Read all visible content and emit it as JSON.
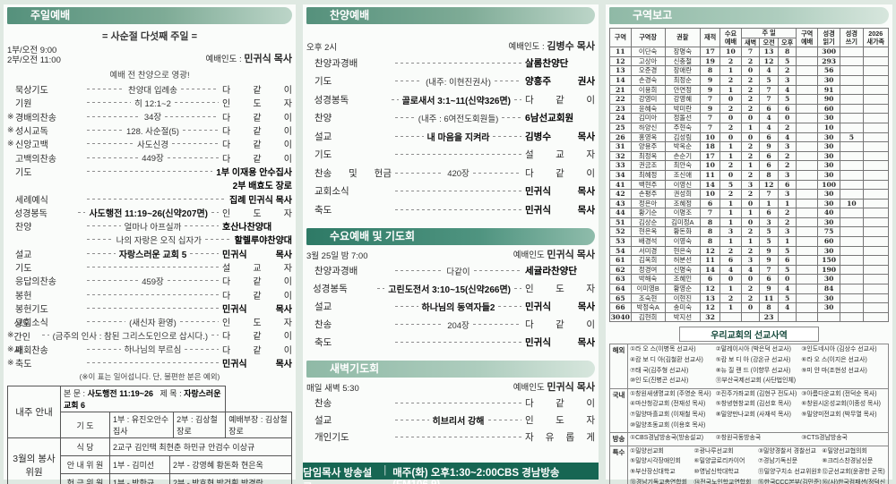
{
  "colors": {
    "banner_green": "#55917c",
    "banner_dark": "#2e7a66",
    "banner_light": "#8fb9a6",
    "bar_bg": "#176653",
    "page_bg": "#dfe9e2"
  },
  "sunday": {
    "title": "주일예배",
    "subtitle": "= 사순절 다섯째 주일 =",
    "time1": "1부/오전 9:00",
    "time2": "2부/오전 11:00",
    "leader_label": "예배인도 :",
    "leader": "민귀식 목사",
    "pre_note": "예배 전 찬양으로 영광!",
    "rows": [
      {
        "l": "묵상기도",
        "c": "찬양대 입례송",
        "r": "다 같 이"
      },
      {
        "l": "기원",
        "c": "히 12:1~2",
        "r": "인 도 자"
      },
      {
        "pre": "※",
        "l": "경배의찬송",
        "c": "34장",
        "r": "다 같 이"
      },
      {
        "pre": "※",
        "l": "성시교독",
        "c": "128. 사순절(5)",
        "r": "다 같 이"
      },
      {
        "pre": "※",
        "l": "신앙고백",
        "c": "사도신경",
        "r": "다 같 이"
      },
      {
        "l": "고백의찬송",
        "c": "449장",
        "r": "다 같 이"
      },
      {
        "l": "기도",
        "r": "1부 이재용 안수집사",
        "rb": true
      },
      {
        "cont": true,
        "r": "2부 배효도 장로",
        "rb": true
      },
      {
        "l": "세례예식",
        "r": "집례 민귀식 목사",
        "rb": true
      },
      {
        "l": "성경봉독",
        "c": "사도행전 11:19~26(신약207면)",
        "cb": true,
        "r": "인 도 자"
      },
      {
        "l": "찬양",
        "c": "얼마나 아프실까",
        "r": "호산나찬양대",
        "rb": true
      },
      {
        "l": "",
        "c": "나의 자랑은 오직 십자가",
        "r": "할렐루야찬양대",
        "rb": true
      },
      {
        "l": "설교",
        "c": "자랑스러운 교회 5",
        "cb": true,
        "r": "민귀식 목사",
        "rb": true
      },
      {
        "l": "기도",
        "r": "설 교 자"
      },
      {
        "l": "응답의찬송",
        "c": "459장",
        "r": "다 같 이"
      },
      {
        "l": "봉헌",
        "r": "다 같 이"
      },
      {
        "l": "봉헌기도",
        "r": "민귀식 목사",
        "rb": true
      },
      {
        "l": "교회소식",
        "c": "(새신자 환영)",
        "r": "인 도 자"
      },
      {
        "pre": "※",
        "l": "성도간인사",
        "c": "(금주의 인사 : 참된 그리스도인으로 삽시다.)",
        "r": "다 같 이"
      },
      {
        "pre": "※",
        "l": "폐회찬송",
        "c": "하나님의 부르심",
        "r": "다 같 이"
      },
      {
        "pre": "※",
        "l": "축도",
        "r": "민귀식 목사",
        "rb": true
      }
    ],
    "footnote": "(※이 표는 일어섭니다. 단, 불편한 분은 예외)"
  },
  "next_week": {
    "head": "내주 안내",
    "scripture_label": "본 문 :",
    "scripture": "사도행전 11:19~26",
    "title_label": "제 목 :",
    "title": "자랑스러운 교회 6",
    "prayer_label": "기 도",
    "prayer_1": "1부 : 유진오안수집사",
    "prayer_2": "2부 : 김상철장로",
    "prayer_3": "예배부장 : 김상철장로"
  },
  "march_volunteers": {
    "head": "3월의 봉사위원",
    "rows": [
      {
        "label": "식 당",
        "cells": [
          "2교구 김인택 최현춘 하민규 안검수 이상규"
        ]
      },
      {
        "label": "안 내 위 원",
        "cells": [
          "1부 - 김미선",
          "2부 - 강영혜 황돈화 현은옥"
        ]
      },
      {
        "label": "헌 금 위 원",
        "cells": [
          "1부 - 박한규",
          "2부 - 박호현 박건휘 박경란"
        ]
      }
    ]
  },
  "praise": {
    "title": "찬양예배",
    "time": "오후 2시",
    "leader_label": "예배인도 :",
    "leader": "김병수 목사",
    "rows": [
      {
        "l": "찬양과경배",
        "r": "살롬찬양단",
        "rb": true
      },
      {
        "l": "기도",
        "c": "(내주: 이현진권사)",
        "r": "양흥주 권사",
        "rb": true
      },
      {
        "l": "성경봉독",
        "c": "골로새서 3:1~11(신약326면)",
        "cb": true,
        "r": "다 같 이"
      },
      {
        "l": "찬양",
        "c": "(내주 : 6여전도회원들)",
        "r": "6남선교회원",
        "rb": true
      },
      {
        "l": "설교",
        "c": "내 마음을 지켜라",
        "cb": true,
        "r": "김병수 목사",
        "rb": true
      },
      {
        "l": "기도",
        "r": "설 교 자"
      },
      {
        "l": "찬송 및 헌금",
        "c": "420장",
        "r": "다 같 이"
      },
      {
        "l": "교회소식",
        "r": "민귀식 목사",
        "rb": true
      },
      {
        "l": "축도",
        "r": "민귀식 목사",
        "rb": true
      }
    ]
  },
  "wednesday": {
    "title": "수요예배 및 기도회",
    "time": "3월 25일 밤 7:00",
    "leader_label": "예배인도",
    "leader": "민귀식 목사",
    "rows": [
      {
        "l": "찬양과경배",
        "c": "다같이",
        "r": "세귤라찬양단",
        "rb": true
      },
      {
        "l": "성경봉독",
        "c": "고린도전서 3:10~15(신약266면)",
        "cb": true,
        "r": "인 도 자"
      },
      {
        "l": "설교",
        "c": "하나님의 동역자들2",
        "cb": true,
        "r": "민귀식 목사",
        "rb": true
      },
      {
        "l": "찬송",
        "c": "204장",
        "r": "다 같 이"
      },
      {
        "l": "축도",
        "r": "민귀식 목사",
        "rb": true
      }
    ]
  },
  "dawn": {
    "title": "새벽기도회",
    "time": "매일 새벽 5:30",
    "leader_label": "예배인도",
    "leader": "민귀식 목사",
    "rows": [
      {
        "l": "찬송",
        "r": "다 같 이"
      },
      {
        "l": "설교",
        "c": "히브리서 강해",
        "cb": true,
        "r": "인 도 자"
      },
      {
        "l": "개인기도",
        "r": "자 유 롭 게"
      }
    ]
  },
  "broadcast_bar": {
    "label": "담임목사 방송설교",
    "sep": "|",
    "text": "매주(화) 오후1:30~2:00CBS 경남방송 (FM106.9)"
  },
  "district": {
    "title": "구역보고",
    "headers": {
      "col_district": "구역",
      "col_leader": "구역장",
      "col_kwonchal": "권찰",
      "col_enrolled": "재적",
      "col_wed": "수요\n예배",
      "group_sunday": "주 일",
      "sub": [
        "새벽",
        "오전",
        "오후"
      ],
      "col_cell": "구역\n예배",
      "col_read": "성경\n읽기",
      "col_write": "성경\n쓰기",
      "col_new": "2026\n새가족"
    },
    "rows": [
      [
        "11",
        "이단숙",
        "장명숙",
        "17",
        "10",
        "7",
        "13",
        "8",
        "",
        "300",
        "",
        ""
      ],
      [
        "12",
        "고상아",
        "신충철",
        "19",
        "2",
        "2",
        "12",
        "5",
        "",
        "293",
        "",
        ""
      ],
      [
        "13",
        "오준경",
        "장애란",
        "8",
        "1",
        "0",
        "4",
        "2",
        "",
        "56",
        "",
        ""
      ],
      [
        "14",
        "손경숙",
        "최정순",
        "9",
        "2",
        "2",
        "5",
        "3",
        "",
        "30",
        "",
        ""
      ],
      [
        "21",
        "이용희",
        "안연정",
        "9",
        "1",
        "2",
        "7",
        "4",
        "",
        "91",
        "",
        ""
      ],
      [
        "22",
        "강영미",
        "강영혜",
        "7",
        "0",
        "2",
        "7",
        "5",
        "",
        "90",
        "",
        ""
      ],
      [
        "23",
        "윤혜숙",
        "박미란",
        "9",
        "2",
        "2",
        "6",
        "6",
        "",
        "60",
        "",
        ""
      ],
      [
        "24",
        "김미아",
        "정돌선",
        "7",
        "0",
        "0",
        "4",
        "0",
        "",
        "30",
        "",
        ""
      ],
      [
        "25",
        "하양신",
        "주현숙",
        "7",
        "2",
        "1",
        "4",
        "2",
        "",
        "10",
        "",
        ""
      ],
      [
        "26",
        "홍영옥",
        "김성림",
        "10",
        "0",
        "0",
        "6",
        "4",
        "",
        "30",
        "5",
        ""
      ],
      [
        "31",
        "양용주",
        "박옥순",
        "18",
        "1",
        "2",
        "9",
        "3",
        "",
        "30",
        "",
        ""
      ],
      [
        "32",
        "최정옥",
        "손순기",
        "17",
        "1",
        "2",
        "6",
        "2",
        "",
        "30",
        "",
        ""
      ],
      [
        "33",
        "권금조",
        "최안숙",
        "10",
        "2",
        "1",
        "6",
        "2",
        "",
        "30",
        "",
        ""
      ],
      [
        "34",
        "최혜정",
        "조신애",
        "11",
        "0",
        "2",
        "8",
        "3",
        "",
        "30",
        "",
        ""
      ],
      [
        "41",
        "백현주",
        "이영신",
        "14",
        "5",
        "3",
        "12",
        "6",
        "",
        "100",
        "",
        ""
      ],
      [
        "42",
        "손평주",
        "권성희",
        "10",
        "2",
        "2",
        "7",
        "3",
        "",
        "30",
        "",
        ""
      ],
      [
        "43",
        "정은아",
        "조혜정",
        "6",
        "1",
        "0",
        "1",
        "1",
        "",
        "30",
        "10",
        ""
      ],
      [
        "44",
        "황기순",
        "이명조",
        "7",
        "1",
        "1",
        "6",
        "2",
        "",
        "40",
        "",
        ""
      ],
      [
        "51",
        "김상순",
        "김미정A",
        "8",
        "1",
        "0",
        "3",
        "2",
        "",
        "30",
        "",
        ""
      ],
      [
        "52",
        "현은옥",
        "황돈화",
        "8",
        "3",
        "2",
        "5",
        "3",
        "",
        "75",
        "",
        ""
      ],
      [
        "53",
        "배경석",
        "이영숙",
        "8",
        "1",
        "1",
        "5",
        "1",
        "",
        "60",
        "",
        ""
      ],
      [
        "54",
        "서미경",
        "현은숙",
        "12",
        "2",
        "2",
        "9",
        "5",
        "",
        "30",
        "",
        ""
      ],
      [
        "61",
        "김옥희",
        "허분선",
        "11",
        "6",
        "3",
        "9",
        "6",
        "",
        "150",
        "",
        ""
      ],
      [
        "62",
        "정경여",
        "신명숙",
        "14",
        "4",
        "4",
        "7",
        "5",
        "",
        "190",
        "",
        ""
      ],
      [
        "63",
        "박해숙",
        "조혜인",
        "6",
        "0",
        "0",
        "6",
        "0",
        "",
        "30",
        "",
        ""
      ],
      [
        "64",
        "이미영B",
        "황영순",
        "12",
        "1",
        "2",
        "9",
        "4",
        "",
        "84",
        "",
        ""
      ],
      [
        "65",
        "조숙현",
        "이현진",
        "13",
        "2",
        "2",
        "11",
        "5",
        "",
        "30",
        "",
        ""
      ],
      [
        "66",
        "박정숙A",
        "송미숙",
        "12",
        "1",
        "0",
        "8",
        "4",
        "",
        "30",
        "",
        ""
      ],
      [
        "3040",
        "김현희",
        "박지선",
        "32",
        "",
        "",
        "23",
        "",
        "",
        "",
        "",
        ""
      ]
    ]
  },
  "mission": {
    "title": "우리교회의 선교사역",
    "groups": [
      {
        "label": "해외",
        "cols": 3,
        "items": [
          "①라 오 스(이병목 선교사)",
          "②말레이시아 (박은덕 선교사)",
          "③인도네시아 (김상수 선교사)",
          "④캄 보 디 아(김철환 선교사)",
          "⑤캄 보 디 아 (강온규 선교사)",
          "⑥라 오 스(이지은 선교사)",
          "⑦태 국(김주형 선교사)",
          "⑧뉴 질 랜 드 (이향무 선교사)",
          "⑨미 얀 마(조현성 선교사)",
          "⑩인 도(진병곤 선교사)",
          "⑪부산국제선교회 (사단법인체)",
          ""
        ]
      },
      {
        "label": "국내",
        "cols": 3,
        "items": [
          "①창원새생명교회 (주영순 목사)",
          "②진주가좌교회 (김현구 전도사)",
          "③아름다운교회 (전덕순 목사)",
          "④마산청강교회 (전재성 목사)",
          "⑤창녕현창교회 (김선호 목사)",
          "⑥창원시온성교회(이종성 목사)",
          "⑦밀양마흘교회 (이재철 목사)",
          "⑧밀양만나교회 (사재석 목사)",
          "⑨밀양미전교회 (박무열 목사)",
          "⑩밀양초동교회 (이용호 목사)",
          "",
          ""
        ]
      },
      {
        "label": "방송",
        "cols": 3,
        "items": [
          "①CBS경남방송국(방송설교)",
          "②창원극동방송국",
          "③CTS경남방송국"
        ]
      },
      {
        "label": "특수",
        "cols": 4,
        "items": [
          "①밀양선교회",
          "②광나루선교회",
          "③밀양경찰서 경찰선교",
          "④밀양선교협의회",
          "⑤밀양시각장애인회",
          "⑥밀양글로리카이어",
          "⑦경남기독신문",
          "⑧크리스찬경남신문",
          "⑨부산장신대학교",
          "⑩영남신학대학교",
          "⑪밀양구치소 선교위원회",
          "⑫군선교회(윤광한 군목)",
          "⑬경남기독교총연합회",
          "⑭전국노인학교연합회",
          "⑮한국CCC본부(김민준)",
          "⑯(사)한국컴패션(정덕신 목사)"
        ]
      }
    ]
  }
}
